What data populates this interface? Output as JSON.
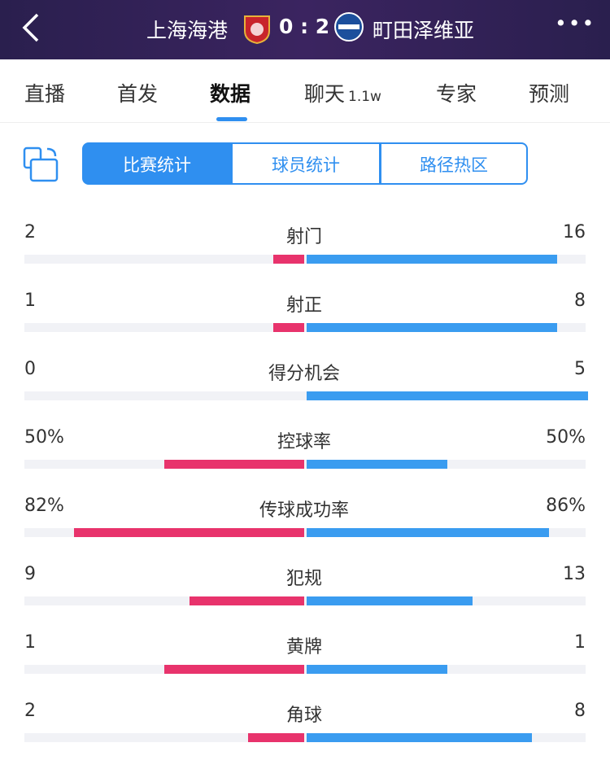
{
  "header": {
    "home_team": "上海海港",
    "score": "0 : 2",
    "away_team": "町田泽维亚"
  },
  "tabs": [
    {
      "label": "直播"
    },
    {
      "label": "首发"
    },
    {
      "label": "数据"
    },
    {
      "label": "聊天",
      "badge": "1.1w"
    },
    {
      "label": "专家"
    },
    {
      "label": "预测"
    }
  ],
  "segments": [
    "比赛统计",
    "球员统计",
    "路径热区"
  ],
  "stats": [
    {
      "label": "射门",
      "home": 2,
      "away": 16
    },
    {
      "label": "射正",
      "home": 1,
      "away": 8
    },
    {
      "label": "得分机会",
      "home": 0,
      "away": 5
    },
    {
      "label": "控球率",
      "home": 50,
      "away": 50,
      "home_label": "50%",
      "away_label": "50%"
    },
    {
      "label": "传球成功率",
      "home": 82,
      "away": 86,
      "home_label": "82%",
      "away_label": "86%"
    },
    {
      "label": "犯规",
      "home": 9,
      "away": 13
    },
    {
      "label": "黄牌",
      "home": 1,
      "away": 1
    },
    {
      "label": "角球",
      "home": 2,
      "away": 8
    }
  ]
}
